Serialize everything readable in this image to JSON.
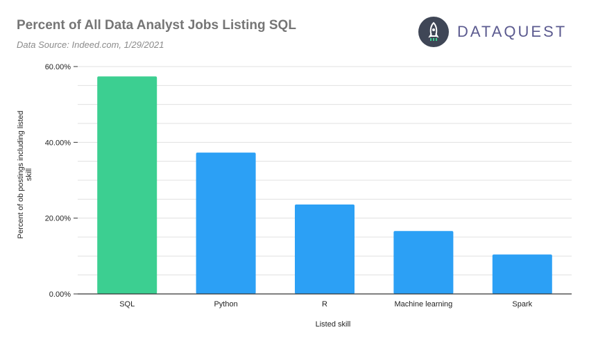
{
  "header": {
    "title": "Percent of All Data Analyst Jobs Listing SQL",
    "subtitle": "Data Source: Indeed.com, 1/29/2021",
    "logo_text": "DATAQUEST"
  },
  "colors": {
    "highlight": "#3ccf91",
    "bar": "#2ca0f5",
    "grid": "#e0e0e0",
    "axis": "#333333",
    "logo_circle": "#3f4656"
  },
  "chart_data": {
    "type": "bar",
    "title": "Percent of All Data Analyst Jobs Listing SQL",
    "xlabel": "Listed skill",
    "ylabel": "Percent of ob postings including listed skill",
    "categories": [
      "SQL",
      "Python",
      "R",
      "Machine learning",
      "Spark"
    ],
    "values": [
      57.4,
      37.3,
      23.6,
      16.6,
      10.4
    ],
    "highlight": [
      true,
      false,
      false,
      false,
      false
    ],
    "ylim": [
      0,
      60
    ],
    "yticks": [
      0,
      20,
      40,
      60
    ],
    "ytick_labels": [
      "0.00%",
      "20.00%",
      "40.00%",
      "60.00%"
    ],
    "minor_grid_step": 5,
    "grid": true
  }
}
